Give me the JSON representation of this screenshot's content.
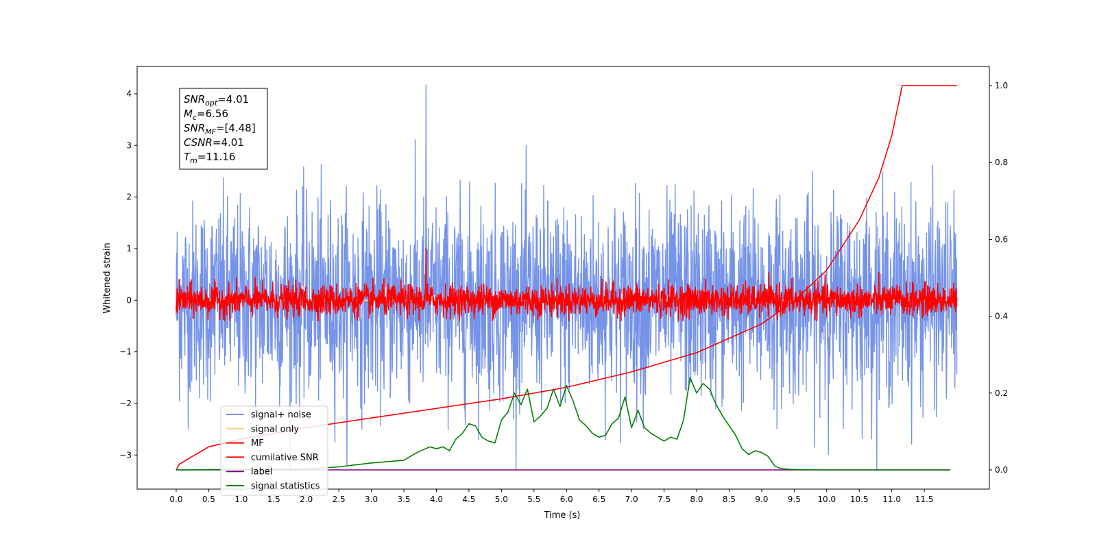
{
  "chart_data": {
    "type": "line",
    "xlabel": "Time (s)",
    "ylabel": "Whitened strain",
    "xlim": [
      -0.6,
      12.5
    ],
    "ylim": [
      -3.66,
      4.53
    ],
    "y2lim": [
      -0.05,
      1.05
    ],
    "xticks": [
      "0.0",
      "0.5",
      "1.0",
      "1.5",
      "2.0",
      "2.5",
      "3.0",
      "3.5",
      "4.0",
      "4.5",
      "5.0",
      "5.5",
      "6.0",
      "6.5",
      "7.0",
      "7.5",
      "8.0",
      "8.5",
      "9.0",
      "9.5",
      "10.0",
      "10.5",
      "11.0",
      "11.5"
    ],
    "yticks": [
      "−3",
      "−2",
      "−1",
      "0",
      "1",
      "2",
      "3",
      "4"
    ],
    "y2ticks": [
      "0.0",
      "0.2",
      "0.4",
      "0.6",
      "0.8",
      "1.0"
    ],
    "grid": false,
    "legend_position": "lower left",
    "annotation": [
      {
        "main": "SNR",
        "sub": "opt",
        "value": "=4.01"
      },
      {
        "main": "M",
        "sub": "c",
        "value": "=6.56"
      },
      {
        "main": "SNR",
        "sub": "MF",
        "value": "=[4.48]"
      },
      {
        "main": "CSNR",
        "sub": "",
        "value": "=4.01"
      },
      {
        "main": "T",
        "sub": "m",
        "value": "=11.16"
      }
    ],
    "series": [
      {
        "name": "signal+ noise",
        "color": "#7593e8",
        "axis": "left",
        "kind": "noise",
        "t_start": 0.0,
        "t_end": 12.0,
        "std": 0.95,
        "max": 4.17,
        "min": -3.3
      },
      {
        "name": "signal only",
        "color": "#f6d57a",
        "axis": "left",
        "kind": "flat",
        "value": 0
      },
      {
        "name": "MF",
        "color": "#ff0000",
        "axis": "left",
        "kind": "noise",
        "t_start": 0.0,
        "t_end": 12.0,
        "std": 0.15,
        "max": 1.0,
        "min": -0.4
      },
      {
        "name": "cumilative SNR",
        "color": "#ff0000",
        "axis": "right",
        "kind": "curve",
        "t_merge": 11.16,
        "x": [
          0.0,
          0.05,
          0.5,
          1.0,
          2.0,
          3.0,
          4.0,
          5.0,
          6.0,
          7.0,
          8.0,
          9.0,
          9.5,
          10.0,
          10.5,
          10.8,
          11.0,
          11.16,
          12.0
        ],
        "y": [
          0.0,
          0.015,
          0.06,
          0.08,
          0.11,
          0.135,
          0.16,
          0.185,
          0.215,
          0.255,
          0.305,
          0.38,
          0.44,
          0.52,
          0.65,
          0.76,
          0.87,
          1.0,
          1.0
        ]
      },
      {
        "name": "label",
        "color": "#800080",
        "axis": "right",
        "kind": "flat",
        "value": 0
      },
      {
        "name": "signal statistics",
        "color": "#008000",
        "axis": "right",
        "kind": "curve",
        "x": [
          0.0,
          1.0,
          2.0,
          2.5,
          3.0,
          3.5,
          3.7,
          3.9,
          4.0,
          4.1,
          4.2,
          4.3,
          4.4,
          4.5,
          4.6,
          4.7,
          4.8,
          4.9,
          5.0,
          5.1,
          5.2,
          5.3,
          5.4,
          5.5,
          5.6,
          5.7,
          5.8,
          5.9,
          6.0,
          6.1,
          6.2,
          6.3,
          6.4,
          6.5,
          6.6,
          6.7,
          6.8,
          6.9,
          7.0,
          7.1,
          7.2,
          7.3,
          7.4,
          7.5,
          7.6,
          7.7,
          7.8,
          7.9,
          8.0,
          8.1,
          8.2,
          8.3,
          8.4,
          8.5,
          8.6,
          8.7,
          8.8,
          8.9,
          9.0,
          9.1,
          9.2,
          9.3,
          9.5,
          10.0,
          11.0,
          11.9
        ],
        "y": [
          0.0,
          0.001,
          0.002,
          0.008,
          0.018,
          0.025,
          0.045,
          0.06,
          0.055,
          0.06,
          0.05,
          0.08,
          0.095,
          0.12,
          0.115,
          0.085,
          0.075,
          0.07,
          0.13,
          0.15,
          0.2,
          0.17,
          0.21,
          0.125,
          0.14,
          0.16,
          0.21,
          0.165,
          0.22,
          0.18,
          0.13,
          0.115,
          0.095,
          0.085,
          0.09,
          0.12,
          0.135,
          0.19,
          0.11,
          0.155,
          0.11,
          0.095,
          0.085,
          0.075,
          0.085,
          0.08,
          0.13,
          0.24,
          0.2,
          0.225,
          0.21,
          0.17,
          0.14,
          0.115,
          0.09,
          0.055,
          0.04,
          0.05,
          0.045,
          0.035,
          0.01,
          0.003,
          0.001,
          0.0,
          0.0,
          0.0
        ]
      }
    ]
  }
}
